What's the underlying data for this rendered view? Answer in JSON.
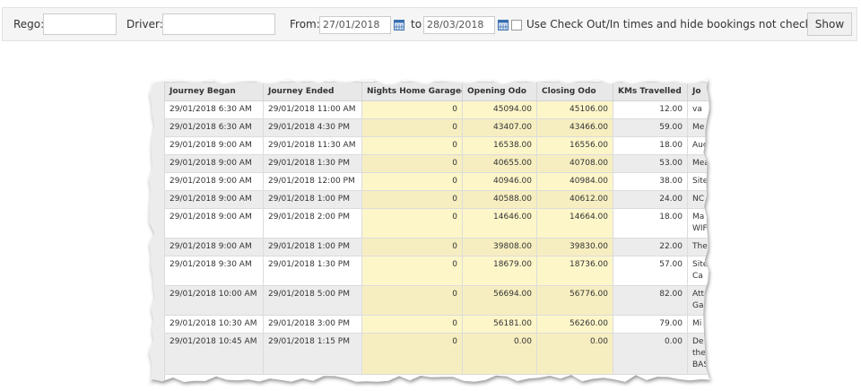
{
  "filters": {
    "rego_label": "Rego:",
    "driver_label": "Driver:",
    "from_label": "From:",
    "from_value": "27/01/2018",
    "to_label": "to",
    "to_value": "28/03/2018",
    "checkbox_label": "Use Check Out/In times and hide bookings not checked out",
    "button": "Show"
  },
  "table": {
    "columns": [
      "Journey Began",
      "Journey Ended",
      "Nights Home Garaged",
      "Opening Odo",
      "Closing Odo",
      "KMs Travelled",
      "Jo"
    ],
    "rows": [
      [
        "29/01/2018 6:30 AM",
        "29/01/2018 11:00 AM",
        "0",
        "45094.00",
        "45106.00",
        "12.00",
        "va"
      ],
      [
        "29/01/2018 6:30 AM",
        "29/01/2018 4:30 PM",
        "0",
        "43407.00",
        "43466.00",
        "59.00",
        "Me"
      ],
      [
        "29/01/2018 9:00 AM",
        "29/01/2018 11:30 AM",
        "0",
        "16538.00",
        "16556.00",
        "18.00",
        "Auc"
      ],
      [
        "29/01/2018 9:00 AM",
        "29/01/2018 1:30 PM",
        "0",
        "40655.00",
        "40708.00",
        "53.00",
        "Mea"
      ],
      [
        "29/01/2018 9:00 AM",
        "29/01/2018 12:00 PM",
        "0",
        "40946.00",
        "40984.00",
        "38.00",
        "Site"
      ],
      [
        "29/01/2018 9:00 AM",
        "29/01/2018 1:00 PM",
        "0",
        "40588.00",
        "40612.00",
        "24.00",
        "NC"
      ],
      [
        "29/01/2018 9:00 AM",
        "29/01/2018 2:00 PM",
        "0",
        "14646.00",
        "14664.00",
        "18.00",
        "Ma WIF"
      ],
      [
        "29/01/2018 9:00 AM",
        "29/01/2018 1:00 PM",
        "0",
        "39808.00",
        "39830.00",
        "22.00",
        "The"
      ],
      [
        "29/01/2018 9:30 AM",
        "29/01/2018 1:30 PM",
        "0",
        "18679.00",
        "18736.00",
        "57.00",
        "Site Ca"
      ],
      [
        "29/01/2018 10:00 AM",
        "29/01/2018 5:00 PM",
        "0",
        "56694.00",
        "56776.00",
        "82.00",
        "Att Gar"
      ],
      [
        "29/01/2018 10:30 AM",
        "29/01/2018 3:00 PM",
        "0",
        "56181.00",
        "56260.00",
        "79.00",
        "Mi"
      ],
      [
        "29/01/2018 10:45 AM",
        "29/01/2018 1:15 PM",
        "0",
        "0.00",
        "0.00",
        "0.00",
        "De off the BAS"
      ]
    ]
  }
}
